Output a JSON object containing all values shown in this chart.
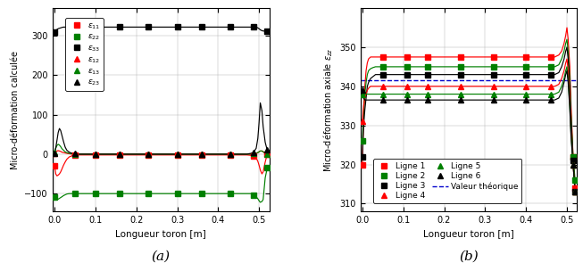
{
  "fig_width": 6.53,
  "fig_height": 3.04,
  "dpi": 100,
  "xlabel": "Longueur toron [m]",
  "ylabel_left": "Micro-déformation calculée",
  "ylabel_right": "Micro-déformation axiale $\\epsilon_{zz}$",
  "label_a": "(a)",
  "label_b": "(b)",
  "x_dense": [
    0.0,
    0.003,
    0.006,
    0.009,
    0.012,
    0.015,
    0.018,
    0.022,
    0.026,
    0.03,
    0.036,
    0.043,
    0.05,
    0.06,
    0.07,
    0.085,
    0.1,
    0.13,
    0.16,
    0.2,
    0.23,
    0.26,
    0.3,
    0.33,
    0.36,
    0.4,
    0.43,
    0.46,
    0.47,
    0.48,
    0.487,
    0.493,
    0.497,
    0.5,
    0.503,
    0.507,
    0.51,
    0.515,
    0.52
  ],
  "left_series": {
    "e11": {
      "color": "red",
      "marker": "s",
      "label": "$\\epsilon_{11}$",
      "y": [
        -30,
        -50,
        -55,
        -53,
        -50,
        -45,
        -38,
        -28,
        -20,
        -13,
        -7,
        -4,
        -3,
        -2,
        -2,
        -2,
        -2,
        -2,
        -2,
        -2,
        -2,
        -2,
        -2,
        -2,
        -2,
        -2,
        -2,
        -2,
        -2,
        -3,
        -5,
        -10,
        -18,
        -28,
        -40,
        -50,
        -45,
        -20,
        0
      ]
    },
    "e22": {
      "color": "green",
      "marker": "s",
      "label": "$\\epsilon_{22}$",
      "y": [
        -108,
        -114,
        -115,
        -114,
        -112,
        -110,
        -108,
        -105,
        -103,
        -101,
        -100,
        -100,
        -100,
        -100,
        -100,
        -100,
        -100,
        -100,
        -100,
        -100,
        -100,
        -100,
        -100,
        -100,
        -100,
        -100,
        -100,
        -100,
        -100,
        -100,
        -103,
        -108,
        -113,
        -118,
        -122,
        -120,
        -115,
        -60,
        -35
      ]
    },
    "e33": {
      "color": "black",
      "marker": "s",
      "label": "$\\epsilon_{33}$",
      "y": [
        310,
        313,
        316,
        318,
        319,
        320,
        321,
        322,
        322,
        322,
        322,
        322,
        322,
        322,
        322,
        322,
        322,
        322,
        322,
        322,
        322,
        322,
        322,
        322,
        322,
        322,
        322,
        322,
        322,
        322,
        322,
        322,
        320,
        318,
        315,
        313,
        312,
        312,
        312
      ]
    },
    "e12": {
      "color": "red",
      "marker": "^",
      "label": "$\\epsilon_{12}$",
      "y": [
        2,
        5,
        8,
        9,
        8,
        7,
        5,
        4,
        3,
        2,
        1,
        0,
        0,
        0,
        0,
        0,
        0,
        0,
        0,
        0,
        0,
        0,
        0,
        0,
        0,
        0,
        0,
        0,
        0,
        0,
        1,
        2,
        4,
        6,
        8,
        8,
        6,
        3,
        1
      ]
    },
    "e13": {
      "color": "green",
      "marker": "^",
      "label": "$\\epsilon_{13}$",
      "y": [
        5,
        15,
        22,
        25,
        23,
        19,
        14,
        10,
        6,
        4,
        2,
        1,
        0,
        0,
        0,
        0,
        0,
        0,
        0,
        0,
        0,
        0,
        0,
        0,
        0,
        0,
        0,
        0,
        0,
        0,
        1,
        2,
        4,
        6,
        8,
        8,
        6,
        2,
        0
      ]
    },
    "e23": {
      "color": "black",
      "marker": "^",
      "label": "$\\epsilon_{23}$",
      "y": [
        2,
        15,
        35,
        55,
        65,
        60,
        48,
        32,
        18,
        10,
        5,
        2,
        1,
        0,
        0,
        0,
        0,
        0,
        0,
        0,
        0,
        0,
        0,
        0,
        0,
        0,
        0,
        0,
        0,
        2,
        5,
        15,
        40,
        80,
        130,
        110,
        70,
        30,
        10
      ]
    }
  },
  "right_x": [
    0.0,
    0.003,
    0.006,
    0.009,
    0.012,
    0.015,
    0.02,
    0.026,
    0.032,
    0.04,
    0.05,
    0.06,
    0.075,
    0.09,
    0.11,
    0.13,
    0.16,
    0.2,
    0.24,
    0.28,
    0.32,
    0.36,
    0.4,
    0.43,
    0.46,
    0.47,
    0.48,
    0.487,
    0.493,
    0.497,
    0.5,
    0.503,
    0.507,
    0.51,
    0.515,
    0.52
  ],
  "right_series": {
    "Ligne1": {
      "color": "red",
      "marker": "s",
      "label": "Ligne 1",
      "y": [
        320,
        333,
        340,
        344,
        346,
        347,
        347.5,
        347.5,
        347.5,
        347.5,
        347.5,
        347.5,
        347.5,
        347.5,
        347.5,
        347.5,
        347.5,
        347.5,
        347.5,
        347.5,
        347.5,
        347.5,
        347.5,
        347.5,
        347.5,
        347.5,
        348,
        349,
        351,
        353,
        355,
        352,
        345,
        335,
        322,
        314
      ]
    },
    "Ligne2": {
      "color": "green",
      "marker": "s",
      "label": "Ligne 2",
      "y": [
        326,
        333,
        338,
        341,
        343,
        344,
        344.5,
        344.8,
        345,
        345,
        345,
        345,
        345,
        345,
        345,
        345,
        345,
        345,
        345,
        345,
        345,
        345,
        345,
        345,
        345,
        345,
        345.5,
        347,
        349,
        351,
        352,
        349,
        342,
        333,
        322,
        316
      ]
    },
    "Ligne3": {
      "color": "black",
      "marker": "s",
      "label": "Ligne 3",
      "y": [
        322,
        330,
        334,
        337,
        340,
        341,
        342,
        342.5,
        343,
        343,
        343,
        343,
        343,
        343,
        343,
        343,
        343,
        343,
        343,
        343,
        343,
        343,
        343,
        343,
        343,
        343,
        343.5,
        345,
        347,
        349,
        350,
        347,
        340,
        332,
        321,
        313
      ]
    },
    "Ligne4": {
      "color": "red",
      "marker": "^",
      "label": "Ligne 4",
      "y": [
        331,
        335,
        337,
        338,
        339,
        339.5,
        340,
        340,
        340,
        340,
        340,
        340,
        340,
        340,
        340,
        340,
        340,
        340,
        340,
        340,
        340,
        340,
        340,
        340,
        340,
        340,
        340.5,
        342,
        344,
        346,
        347,
        344,
        337,
        329,
        320,
        313
      ]
    },
    "Ligne5": {
      "color": "green",
      "marker": "^",
      "label": "Ligne 5",
      "y": [
        338,
        338,
        338,
        338,
        338,
        338,
        338,
        338,
        338,
        338,
        338,
        338,
        338,
        338,
        338,
        338,
        338,
        338,
        338,
        338,
        338,
        338,
        338,
        338,
        338,
        338,
        338.5,
        340,
        342,
        344,
        345,
        342,
        335,
        328,
        320,
        313
      ]
    },
    "Ligne6": {
      "color": "black",
      "marker": "^",
      "label": "Ligne 6",
      "y": [
        339,
        337,
        336.5,
        336.5,
        336.5,
        336.5,
        336.5,
        336.5,
        336.5,
        336.5,
        336.5,
        336.5,
        336.5,
        336.5,
        336.5,
        336.5,
        336.5,
        336.5,
        336.5,
        336.5,
        336.5,
        336.5,
        336.5,
        336.5,
        336.5,
        336.5,
        337,
        338.5,
        341,
        343,
        344,
        341,
        334,
        327,
        320,
        313
      ]
    }
  },
  "theoretical_value": 341.5,
  "theoretical_color": "#0000cc",
  "theoretical_style": "--",
  "theoretical_label": "Valeur théorique",
  "left_ylim": [
    -145,
    370
  ],
  "left_yticks": [
    -100,
    0,
    100,
    200,
    300
  ],
  "right_ylim": [
    308,
    360
  ],
  "right_yticks": [
    310,
    320,
    330,
    340,
    350
  ],
  "xlim": [
    -0.005,
    0.525
  ],
  "xticks": [
    0,
    0.1,
    0.2,
    0.3,
    0.4,
    0.5
  ]
}
